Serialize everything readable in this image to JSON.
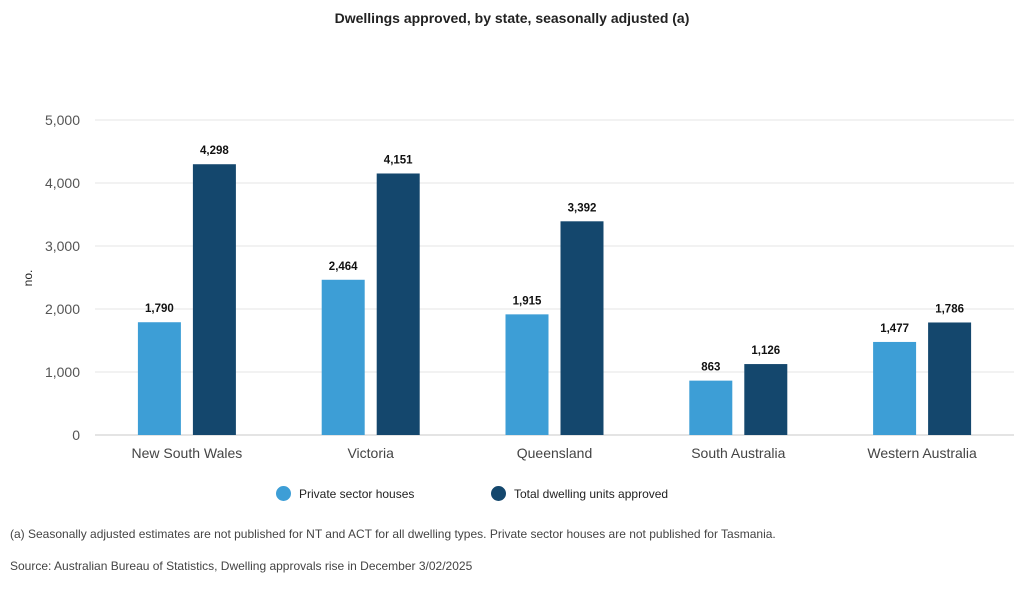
{
  "chart_data": {
    "type": "bar",
    "title": "Dwellings approved, by state, seasonally adjusted (a)",
    "ylabel": "no.",
    "xlabel": "",
    "ylim": [
      0,
      5000
    ],
    "yticks": [
      0,
      1000,
      2000,
      3000,
      4000,
      5000
    ],
    "ytick_labels": [
      "0",
      "1,000",
      "2,000",
      "3,000",
      "4,000",
      "5,000"
    ],
    "grid": true,
    "legend_position": "bottom",
    "categories": [
      "New South Wales",
      "Victoria",
      "Queensland",
      "South Australia",
      "Western Australia"
    ],
    "series": [
      {
        "name": "Private sector houses",
        "color": "#3d9ed6",
        "values": [
          1790,
          2464,
          1915,
          863,
          1477
        ],
        "labels": [
          "1,790",
          "2,464",
          "1,915",
          "863",
          "1,477"
        ]
      },
      {
        "name": "Total dwelling units approved",
        "color": "#14476d",
        "values": [
          4298,
          4151,
          3392,
          1126,
          1786
        ],
        "labels": [
          "4,298",
          "4,151",
          "3,392",
          "1,126",
          "1,786"
        ]
      }
    ]
  },
  "footnote": "(a) Seasonally adjusted estimates are not published for NT and ACT for all dwelling types. Private sector houses are not published for Tasmania.",
  "source": "Source: Australian Bureau of Statistics, Dwelling approvals rise in December 3/02/2025"
}
